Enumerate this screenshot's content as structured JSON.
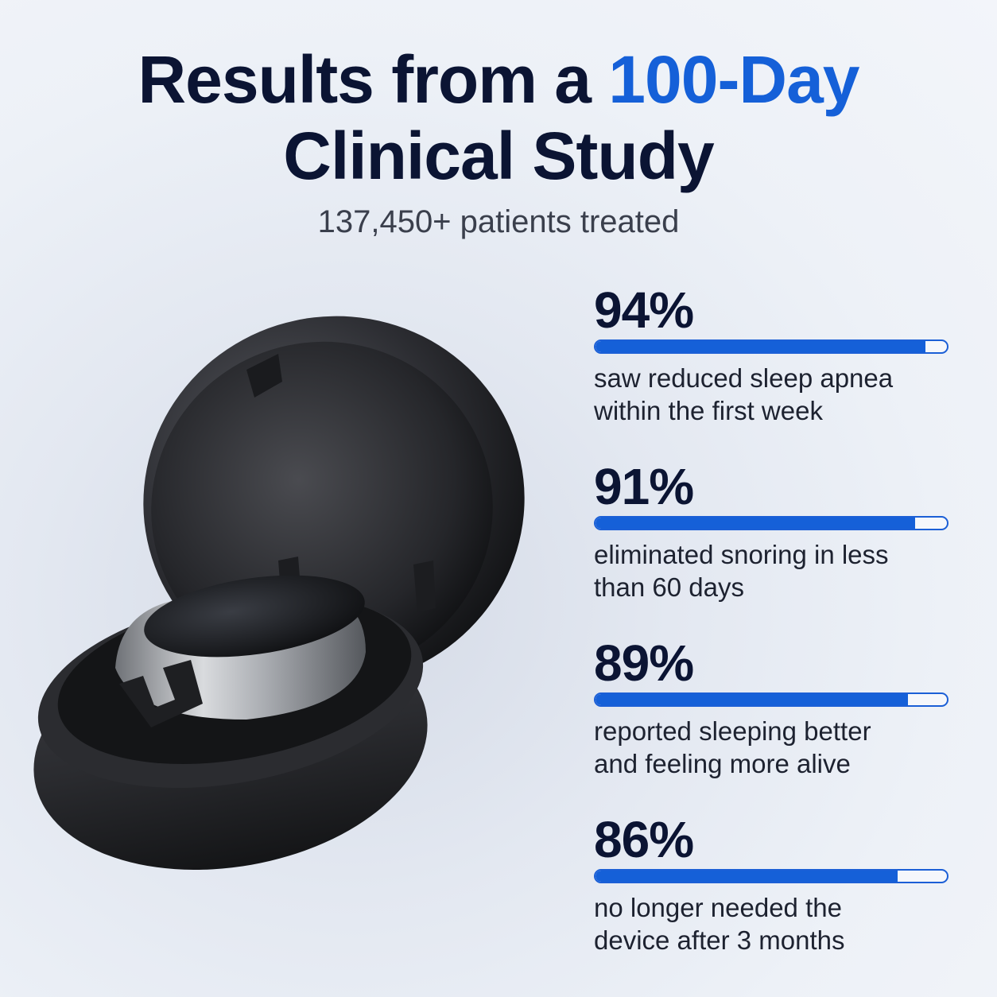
{
  "title": {
    "line1_part1": "Results from a ",
    "line1_highlight": "100-Day",
    "line2": "Clinical Study"
  },
  "subtitle": "137,450+ patients treated",
  "colors": {
    "accent": "#1560d8",
    "text_dark": "#0b1433"
  },
  "product_image": {
    "icon": "sleep-device-case-image"
  },
  "stats": [
    {
      "percent": "94%",
      "fill": 0.94,
      "line1": "saw reduced sleep apnea",
      "line2": "within the first week"
    },
    {
      "percent": "91%",
      "fill": 0.91,
      "line1": "eliminated snoring in less",
      "line2": "than 60 days"
    },
    {
      "percent": "89%",
      "fill": 0.89,
      "line1": "reported sleeping better",
      "line2": "and feeling more alive"
    },
    {
      "percent": "86%",
      "fill": 0.86,
      "line1": "no longer needed the",
      "line2": "device after 3 months"
    }
  ]
}
